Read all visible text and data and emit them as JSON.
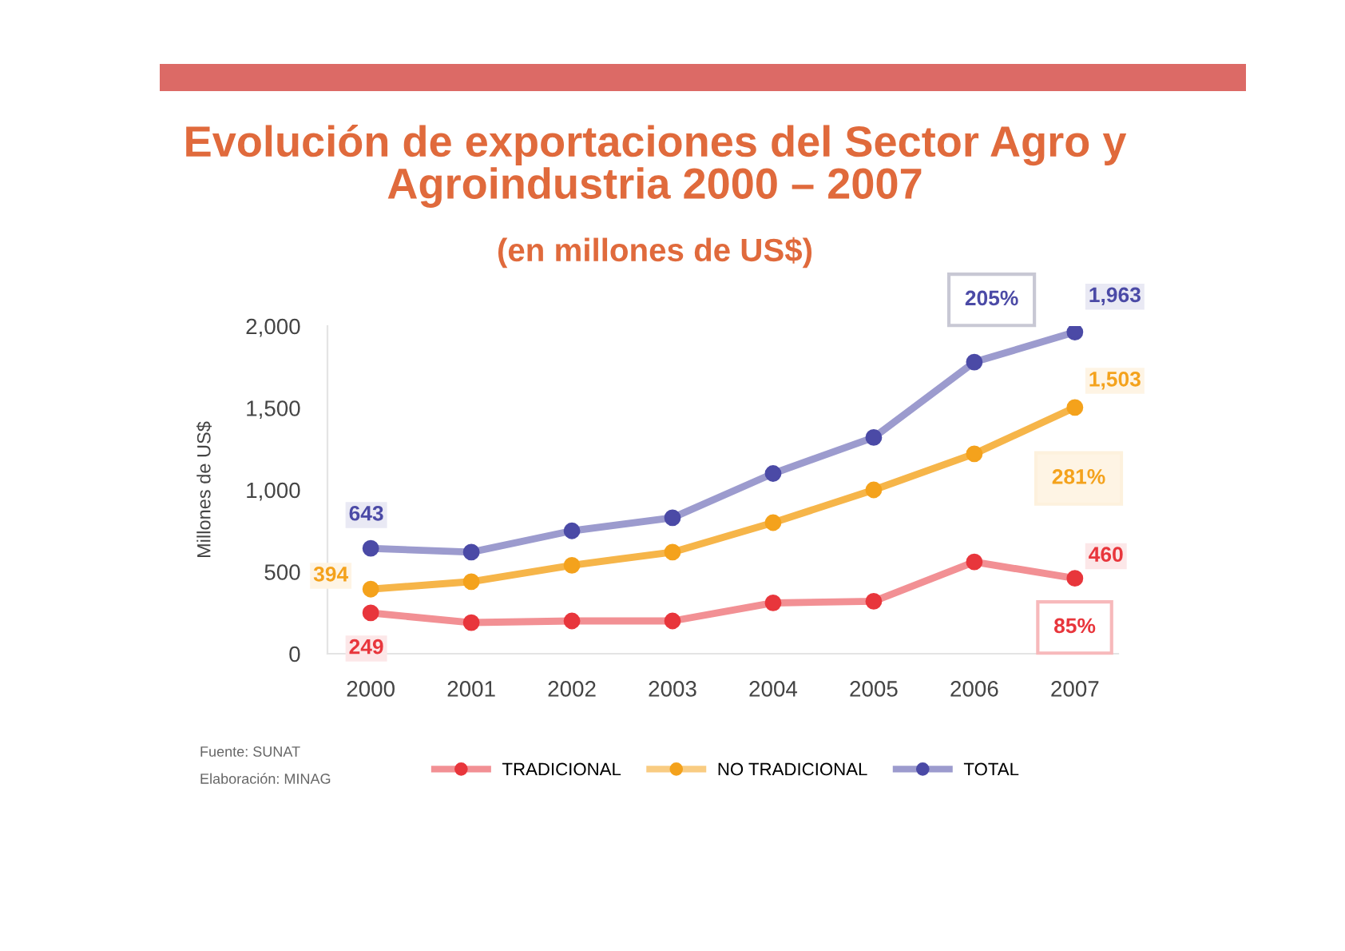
{
  "chart_data": {
    "type": "line",
    "title": "Evolución de exportaciones del Sector Agro y\nAgroindustria 2000 – 2007",
    "subtitle": "(en millones de US$)",
    "ylabel": "Millones de US$",
    "categories": [
      "2000",
      "2001",
      "2002",
      "2003",
      "2004",
      "2005",
      "2006",
      "2007"
    ],
    "series": [
      {
        "name": "TRADICIONAL",
        "color": "#e8363c",
        "values": [
          249,
          190,
          200,
          200,
          310,
          320,
          560,
          460
        ],
        "value_labels": [
          "249",
          null,
          null,
          null,
          null,
          null,
          null,
          "460"
        ]
      },
      {
        "name": "NO TRADICIONAL",
        "color": "#f4a21c",
        "values": [
          394,
          440,
          540,
          620,
          800,
          1000,
          1220,
          1503
        ],
        "value_labels": [
          "394",
          null,
          null,
          null,
          null,
          null,
          null,
          "1,503"
        ]
      },
      {
        "name": "TOTAL",
        "color": "#4b4aa6",
        "values": [
          643,
          620,
          750,
          830,
          1100,
          1320,
          1780,
          1963
        ],
        "value_labels": [
          "643",
          null,
          null,
          null,
          null,
          null,
          null,
          "1,963"
        ]
      }
    ],
    "ylim": [
      0,
      2000
    ],
    "yticks": [
      0,
      500,
      {
        "value": 1000,
        "label": "1,000"
      },
      {
        "value": 1500,
        "label": "1,500"
      },
      {
        "value": 2000,
        "label": "2,000"
      }
    ],
    "grid": false,
    "legend": "bottom",
    "marker": "circle",
    "line_style": "solid",
    "annotations": [
      "85%",
      "281%",
      "205%",
      "Fuente: SUNAT",
      "Elaboración: MINAG"
    ]
  }
}
